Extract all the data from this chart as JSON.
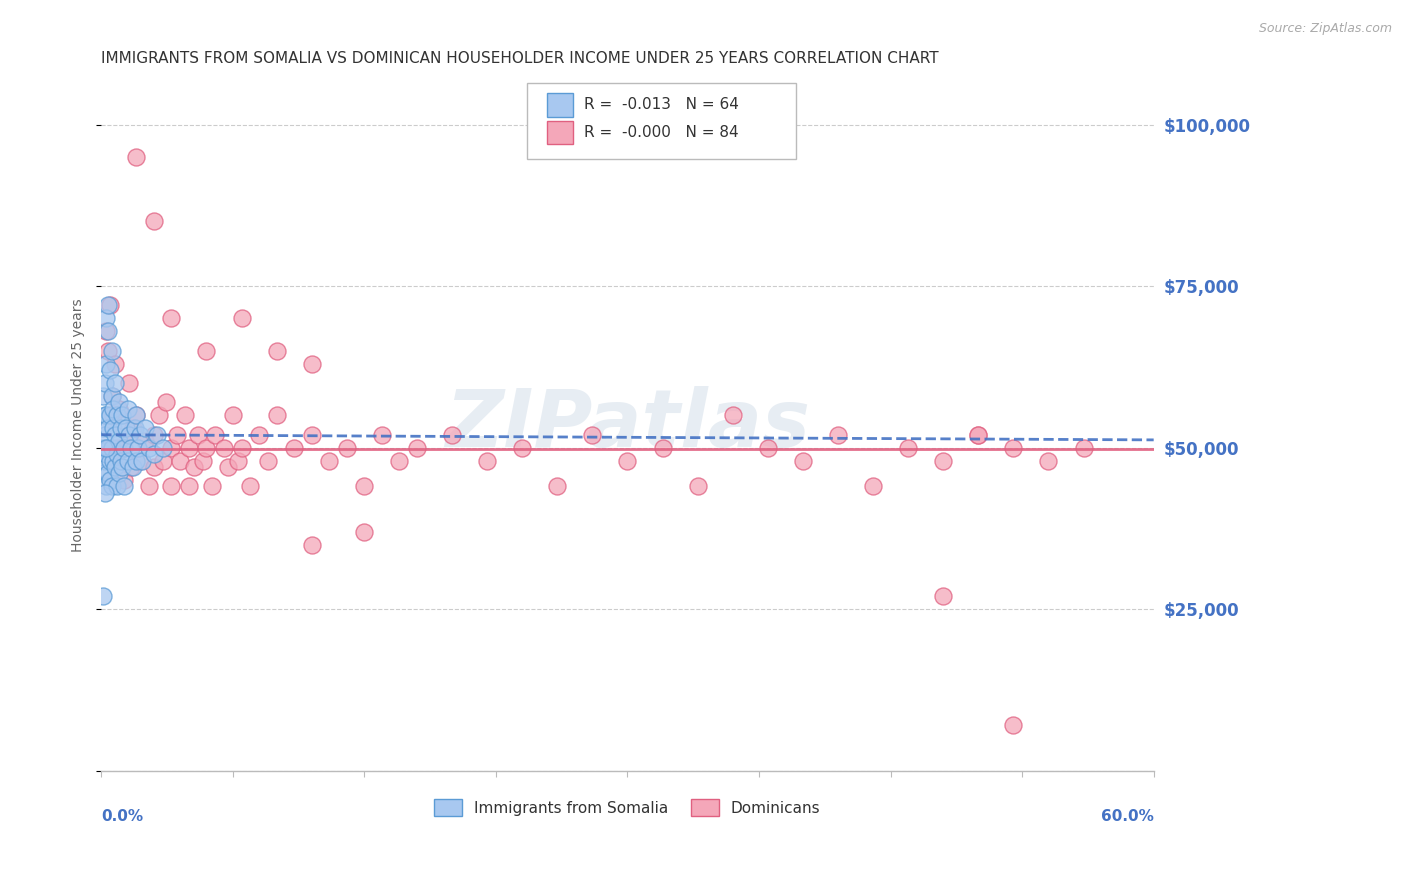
{
  "title": "IMMIGRANTS FROM SOMALIA VS DOMINICAN HOUSEHOLDER INCOME UNDER 25 YEARS CORRELATION CHART",
  "source": "Source: ZipAtlas.com",
  "ylabel": "Householder Income Under 25 years",
  "ytick_values": [
    0,
    25000,
    50000,
    75000,
    100000
  ],
  "ytick_labels": [
    "",
    "$25,000",
    "$50,000",
    "$75,000",
    "$100,000"
  ],
  "ymin": 0,
  "ymax": 107000,
  "xmin": 0.0,
  "xmax": 0.6,
  "legend_somalia": "Immigrants from Somalia",
  "legend_dominican": "Dominicans",
  "r_somalia": "-0.013",
  "n_somalia": "64",
  "r_dominican": "-0.000",
  "n_dominican": "84",
  "color_somalia_fill": "#A8C8F0",
  "color_somalia_edge": "#5B9BD5",
  "color_dominican_fill": "#F4A7B9",
  "color_dominican_edge": "#E06080",
  "color_trend_somalia": "#4472C4",
  "color_trend_dominican": "#E06080",
  "color_axis_labels": "#4472C4",
  "background_color": "#FFFFFF",
  "watermark": "ZIPatlas",
  "somalia_x": [
    0.001,
    0.001,
    0.001,
    0.001,
    0.002,
    0.002,
    0.002,
    0.002,
    0.003,
    0.003,
    0.003,
    0.003,
    0.003,
    0.004,
    0.004,
    0.004,
    0.004,
    0.004,
    0.005,
    0.005,
    0.005,
    0.005,
    0.006,
    0.006,
    0.006,
    0.006,
    0.007,
    0.007,
    0.007,
    0.008,
    0.008,
    0.008,
    0.009,
    0.009,
    0.009,
    0.01,
    0.01,
    0.01,
    0.011,
    0.011,
    0.012,
    0.012,
    0.013,
    0.013,
    0.014,
    0.015,
    0.015,
    0.016,
    0.017,
    0.018,
    0.019,
    0.02,
    0.02,
    0.021,
    0.022,
    0.023,
    0.025,
    0.027,
    0.03,
    0.032,
    0.035,
    0.001,
    0.002,
    0.003
  ],
  "somalia_y": [
    50000,
    53000,
    46000,
    58000,
    55000,
    48000,
    52000,
    60000,
    63000,
    70000,
    49000,
    55000,
    44000,
    72000,
    50000,
    46000,
    53000,
    68000,
    62000,
    45000,
    55000,
    48000,
    58000,
    65000,
    50000,
    44000,
    56000,
    48000,
    53000,
    60000,
    47000,
    52000,
    55000,
    49000,
    44000,
    57000,
    51000,
    46000,
    53000,
    48000,
    55000,
    47000,
    50000,
    44000,
    53000,
    56000,
    48000,
    52000,
    50000,
    47000,
    53000,
    48000,
    55000,
    50000,
    52000,
    48000,
    53000,
    50000,
    49000,
    52000,
    50000,
    27000,
    43000,
    50000
  ],
  "dominican_x": [
    0.003,
    0.004,
    0.005,
    0.006,
    0.007,
    0.008,
    0.009,
    0.01,
    0.012,
    0.013,
    0.015,
    0.016,
    0.017,
    0.018,
    0.02,
    0.022,
    0.025,
    0.027,
    0.03,
    0.03,
    0.033,
    0.035,
    0.037,
    0.04,
    0.04,
    0.043,
    0.045,
    0.048,
    0.05,
    0.05,
    0.053,
    0.055,
    0.058,
    0.06,
    0.063,
    0.065,
    0.07,
    0.072,
    0.075,
    0.078,
    0.08,
    0.085,
    0.09,
    0.095,
    0.1,
    0.11,
    0.12,
    0.13,
    0.14,
    0.15,
    0.16,
    0.17,
    0.18,
    0.2,
    0.22,
    0.24,
    0.26,
    0.28,
    0.3,
    0.32,
    0.34,
    0.36,
    0.38,
    0.4,
    0.42,
    0.44,
    0.46,
    0.48,
    0.5,
    0.52,
    0.54,
    0.56,
    0.02,
    0.03,
    0.04,
    0.06,
    0.08,
    0.1,
    0.12,
    0.5,
    0.12,
    0.15,
    0.48,
    0.52
  ],
  "dominican_y": [
    68000,
    65000,
    72000,
    58000,
    55000,
    63000,
    50000,
    56000,
    50000,
    45000,
    52000,
    60000,
    47000,
    53000,
    55000,
    48000,
    51000,
    44000,
    52000,
    47000,
    55000,
    48000,
    57000,
    50000,
    44000,
    52000,
    48000,
    55000,
    50000,
    44000,
    47000,
    52000,
    48000,
    50000,
    44000,
    52000,
    50000,
    47000,
    55000,
    48000,
    50000,
    44000,
    52000,
    48000,
    55000,
    50000,
    52000,
    48000,
    50000,
    44000,
    52000,
    48000,
    50000,
    52000,
    48000,
    50000,
    44000,
    52000,
    48000,
    50000,
    44000,
    55000,
    50000,
    48000,
    52000,
    44000,
    50000,
    48000,
    52000,
    50000,
    48000,
    50000,
    95000,
    85000,
    70000,
    65000,
    70000,
    65000,
    63000,
    52000,
    35000,
    37000,
    27000,
    7000
  ]
}
